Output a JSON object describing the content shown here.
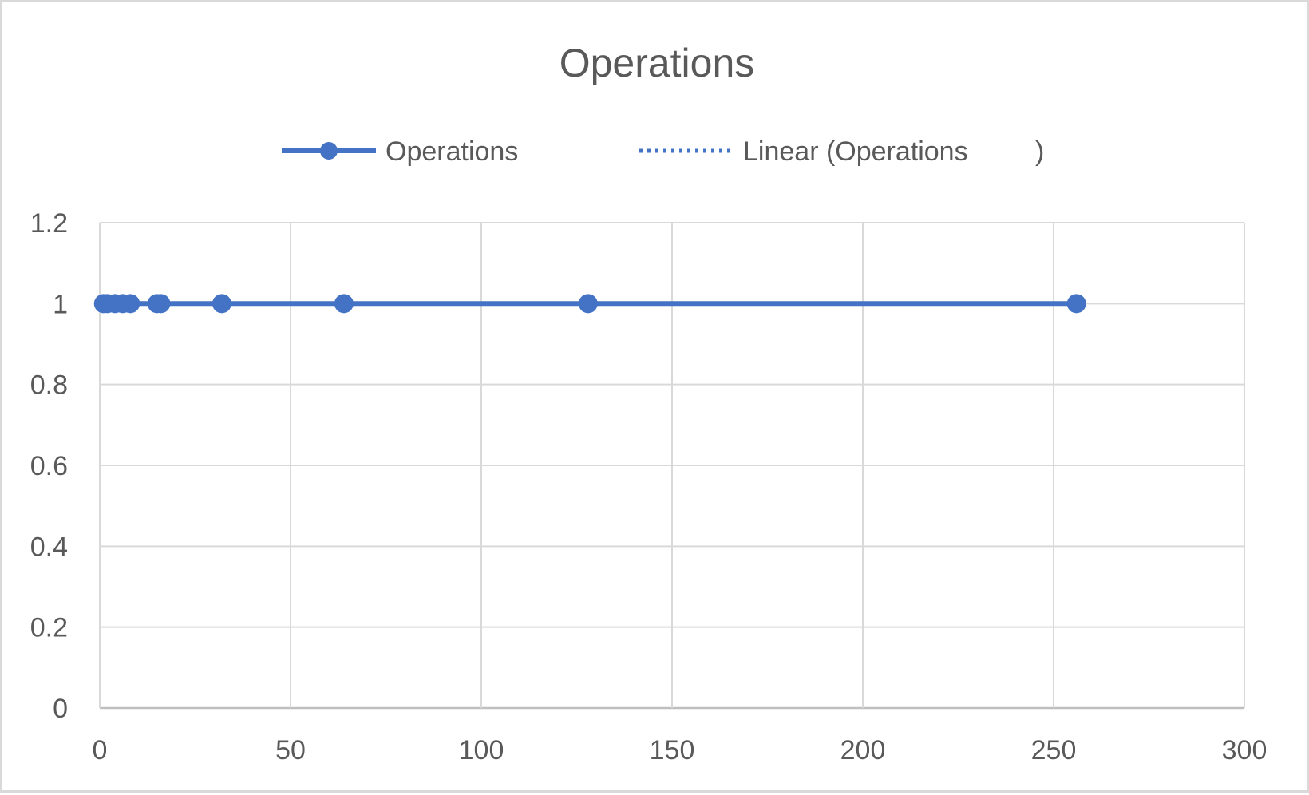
{
  "chart_data": {
    "type": "scatter",
    "title": "Operations",
    "xlabel": "",
    "ylabel": "",
    "xlim": [
      0,
      300
    ],
    "ylim": [
      0,
      1.2
    ],
    "x_ticks": [
      "0",
      "50",
      "100",
      "150",
      "200",
      "250",
      "300"
    ],
    "y_ticks": [
      "0",
      "0.2",
      "0.4",
      "0.6",
      "0.8",
      "1",
      "1.2"
    ],
    "grid": true,
    "legend_position": "top",
    "series": [
      {
        "name": "Operations",
        "style": "line-with-markers",
        "color": "#4472c4",
        "points": [
          {
            "x": 1,
            "y": 1
          },
          {
            "x": 2,
            "y": 1
          },
          {
            "x": 4,
            "y": 1
          },
          {
            "x": 6,
            "y": 1
          },
          {
            "x": 8,
            "y": 1
          },
          {
            "x": 15,
            "y": 1
          },
          {
            "x": 16,
            "y": 1
          },
          {
            "x": 32,
            "y": 1
          },
          {
            "x": 64,
            "y": 1
          },
          {
            "x": 128,
            "y": 1
          },
          {
            "x": 256,
            "y": 1
          }
        ]
      }
    ],
    "trendline": {
      "name": "Linear (Operations",
      "name_suffix": ")",
      "type": "linear",
      "style": "dotted",
      "color": "#4472c4"
    }
  }
}
